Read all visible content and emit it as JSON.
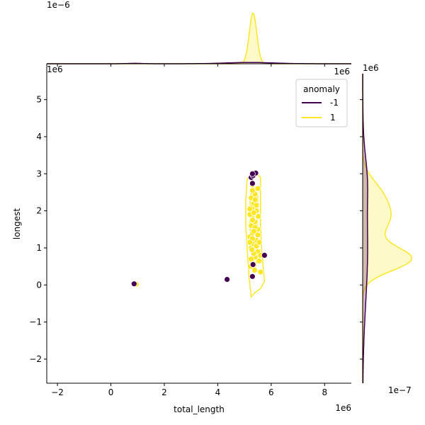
{
  "chart_data": {
    "type": "scatter",
    "xlabel": "total_length",
    "ylabel": "longest",
    "x_offset_label": "1e6",
    "y_offset_label": "1e6",
    "xlim": [
      -2.4,
      9.0
    ],
    "ylim": [
      -2.65,
      5.7
    ],
    "x_ticks": [
      -2,
      0,
      2,
      4,
      6,
      8
    ],
    "y_ticks": [
      -2,
      -1,
      0,
      1,
      2,
      3,
      4,
      5
    ],
    "x_tick_labels": [
      "−2",
      "0",
      "2",
      "4",
      "6",
      "8"
    ],
    "y_tick_labels": [
      "−2",
      "−1",
      "0",
      "1",
      "2",
      "3",
      "4",
      "5"
    ],
    "legend": {
      "title": "anomaly",
      "placement": "top-right",
      "entries": [
        {
          "label": "-1",
          "color": "#440154"
        },
        {
          "label": "1",
          "color": "#fde725"
        }
      ]
    },
    "colors": {
      "anomaly": "#440154",
      "normal": "#fde725"
    },
    "marginal_x": {
      "offset_label": "1e−6",
      "inner_offset_label": "1e6"
    },
    "marginal_y": {
      "offset_label": "1e−7",
      "top_offset_label": "1e6"
    },
    "series": [
      {
        "name": "1",
        "color": "#fde725",
        "points": [
          [
            5.22,
            0.5
          ],
          [
            5.3,
            0.6
          ],
          [
            5.4,
            0.75
          ],
          [
            5.5,
            0.9
          ],
          [
            5.25,
            1.0
          ],
          [
            5.35,
            1.1
          ],
          [
            5.45,
            1.2
          ],
          [
            5.2,
            1.3
          ],
          [
            5.3,
            1.4
          ],
          [
            5.5,
            1.5
          ],
          [
            5.25,
            1.6
          ],
          [
            5.4,
            1.7
          ],
          [
            5.3,
            1.8
          ],
          [
            5.2,
            1.9
          ],
          [
            5.45,
            2.0
          ],
          [
            5.3,
            2.1
          ],
          [
            5.35,
            2.2
          ],
          [
            5.25,
            2.35
          ],
          [
            5.4,
            2.45
          ],
          [
            5.3,
            2.55
          ],
          [
            5.5,
            2.6
          ],
          [
            5.35,
            0.85
          ],
          [
            5.45,
            1.05
          ],
          [
            5.25,
            0.7
          ],
          [
            5.5,
            1.35
          ],
          [
            5.3,
            1.25
          ],
          [
            5.4,
            1.55
          ],
          [
            5.3,
            1.75
          ],
          [
            5.35,
            1.95
          ],
          [
            5.4,
            2.3
          ],
          [
            5.55,
            0.65
          ],
          [
            5.6,
            0.8
          ],
          [
            5.6,
            0.35
          ],
          [
            5.55,
            1.15
          ],
          [
            5.2,
            1.15
          ],
          [
            5.35,
            1.45
          ],
          [
            5.45,
            2.15
          ],
          [
            5.3,
            2.7
          ],
          [
            5.38,
            0.4
          ],
          [
            5.2,
            2.05
          ],
          [
            5.52,
            1.85
          ],
          [
            5.28,
            0.95
          ],
          [
            0.95,
            0.02
          ]
        ]
      },
      {
        "name": "-1",
        "color": "#440154",
        "points": [
          [
            5.25,
            2.9
          ],
          [
            5.32,
            2.95
          ],
          [
            5.42,
            3.02
          ],
          [
            5.3,
            3.0
          ],
          [
            5.3,
            2.74
          ],
          [
            5.32,
            0.55
          ],
          [
            5.3,
            0.23
          ],
          [
            5.75,
            0.8
          ],
          [
            4.35,
            0.15
          ],
          [
            0.87,
            0.03
          ]
        ]
      }
    ]
  }
}
